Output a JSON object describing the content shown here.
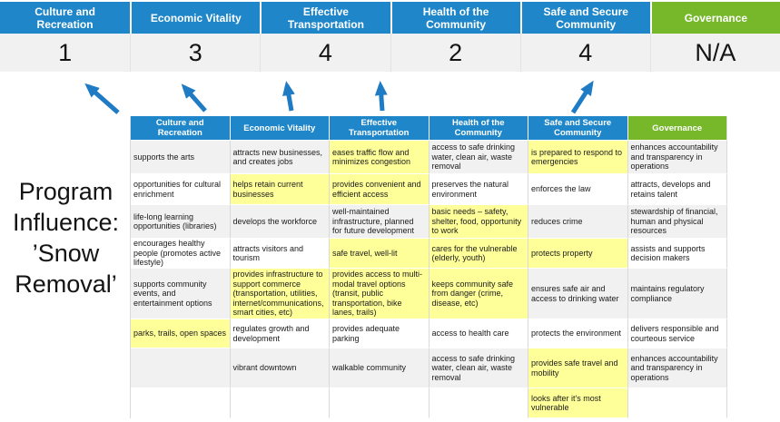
{
  "program_label": "Program\nInfluence:\n’Snow\nRemoval’",
  "colors": {
    "priority_blue": "#1F87C9",
    "governance_green": "#76B82A",
    "highlight_yellow": "#FFFF99",
    "score_band_gray": "#F1F1F2",
    "arrow_blue": "#1E7BC4"
  },
  "scoreboard": {
    "columns": [
      {
        "label": "Culture and\nRecreation",
        "score": "1",
        "color": "blue"
      },
      {
        "label": "Economic Vitality",
        "score": "3",
        "color": "blue"
      },
      {
        "label": "Effective\nTransportation",
        "score": "4",
        "color": "blue"
      },
      {
        "label": "Health of the\nCommunity",
        "score": "2",
        "color": "blue"
      },
      {
        "label": "Safe and Secure\nCommunity",
        "score": "4",
        "color": "blue"
      },
      {
        "label": "Governance",
        "score": "N/A",
        "color": "green"
      }
    ]
  },
  "matrix": {
    "headers": [
      {
        "label": "Culture and Recreation",
        "color": "blue"
      },
      {
        "label": "Economic Vitality",
        "color": "blue"
      },
      {
        "label": "Effective Transportation",
        "color": "blue"
      },
      {
        "label": "Health of the Community",
        "color": "blue"
      },
      {
        "label": "Safe and Secure\nCommunity",
        "color": "blue"
      },
      {
        "label": "Governance",
        "color": "green"
      }
    ],
    "rows": [
      [
        {
          "text": "supports the arts",
          "highlight": false
        },
        {
          "text": "attracts new businesses, and creates jobs",
          "highlight": false
        },
        {
          "text": "eases traffic flow and minimizes congestion",
          "highlight": true
        },
        {
          "text": "access to safe drinking water, clean air, waste removal",
          "highlight": false
        },
        {
          "text": "is prepared to respond to emergencies",
          "highlight": true
        },
        {
          "text": "enhances accountability and transparency in operations",
          "highlight": false
        }
      ],
      [
        {
          "text": "opportunities for cultural enrichment",
          "highlight": false
        },
        {
          "text": "helps retain current businesses",
          "highlight": true
        },
        {
          "text": "provides convenient and efficient access",
          "highlight": true
        },
        {
          "text": "preserves the natural environment",
          "highlight": false
        },
        {
          "text": "enforces the law",
          "highlight": false
        },
        {
          "text": "attracts, develops and retains talent",
          "highlight": false
        }
      ],
      [
        {
          "text": "life-long learning opportunities (libraries)",
          "highlight": false
        },
        {
          "text": "develops the workforce",
          "highlight": false
        },
        {
          "text": "well-maintained infrastructure, planned for future development",
          "highlight": false
        },
        {
          "text": "basic needs – safety, shelter, food, opportunity to work",
          "highlight": true
        },
        {
          "text": "reduces crime",
          "highlight": false
        },
        {
          "text": "stewardship of financial, human and physical resources",
          "highlight": false
        }
      ],
      [
        {
          "text": "encourages healthy people (promotes active lifestyle)",
          "highlight": false
        },
        {
          "text": "attracts visitors and tourism",
          "highlight": false
        },
        {
          "text": "safe travel, well-lit",
          "highlight": true
        },
        {
          "text": "cares for the vulnerable (elderly, youth)",
          "highlight": true
        },
        {
          "text": "protects property",
          "highlight": true
        },
        {
          "text": "assists and supports decision makers",
          "highlight": false
        }
      ],
      [
        {
          "text": "supports community events, and entertainment options",
          "highlight": false
        },
        {
          "text": "provides infrastructure to support commerce (transportation, utilities, internet/communications, smart cities, etc)",
          "highlight": true
        },
        {
          "text": "provides access to multi-modal travel options (transit, public transportation, bike lanes, trails)",
          "highlight": true
        },
        {
          "text": "keeps community safe from danger (crime, disease, etc)",
          "highlight": true
        },
        {
          "text": "ensures safe air and access to drinking water",
          "highlight": false
        },
        {
          "text": "maintains regulatory compliance",
          "highlight": false
        }
      ],
      [
        {
          "text": "parks, trails, open spaces",
          "highlight": true
        },
        {
          "text": "regulates growth and development",
          "highlight": false
        },
        {
          "text": "provides adequate parking",
          "highlight": false
        },
        {
          "text": "access to health care",
          "highlight": false
        },
        {
          "text": "protects the environment",
          "highlight": false
        },
        {
          "text": "delivers responsible and courteous service",
          "highlight": false
        }
      ],
      [
        {
          "text": "",
          "highlight": false
        },
        {
          "text": "vibrant downtown",
          "highlight": false
        },
        {
          "text": "walkable community",
          "highlight": false
        },
        {
          "text": "access to safe drinking water, clean air, waste removal",
          "highlight": false
        },
        {
          "text": "provides safe travel and mobility",
          "highlight": true
        },
        {
          "text": "enhances accountability and transparency in operations",
          "highlight": false
        }
      ],
      [
        {
          "text": "",
          "highlight": false
        },
        {
          "text": "",
          "highlight": false
        },
        {
          "text": "",
          "highlight": false
        },
        {
          "text": "",
          "highlight": false
        },
        {
          "text": "looks after it's most vulnerable",
          "highlight": true
        },
        {
          "text": "",
          "highlight": false
        }
      ]
    ]
  }
}
